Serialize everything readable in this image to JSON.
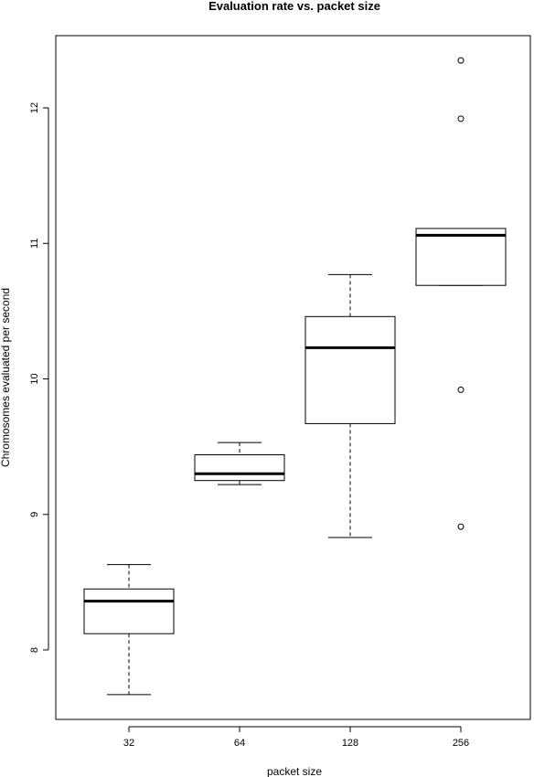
{
  "chart_data": {
    "type": "box",
    "title": "Evaluation rate vs. packet size",
    "xlabel": "packet size",
    "ylabel": "Chromosomes evaluated per second",
    "ylim": [
      7.5,
      12.5
    ],
    "yticks": [
      8,
      9,
      10,
      11,
      12
    ],
    "categories": [
      "32",
      "64",
      "128",
      "256"
    ],
    "boxes": [
      {
        "category": "32",
        "whisker_low": 7.67,
        "q1": 8.12,
        "median": 8.36,
        "q3": 8.45,
        "whisker_high": 8.63,
        "outliers": []
      },
      {
        "category": "64",
        "whisker_low": 9.22,
        "q1": 9.25,
        "median": 9.3,
        "q3": 9.44,
        "whisker_high": 9.53,
        "outliers": []
      },
      {
        "category": "128",
        "whisker_low": 8.83,
        "q1": 9.67,
        "median": 10.23,
        "q3": 10.46,
        "whisker_high": 10.77,
        "outliers": []
      },
      {
        "category": "256",
        "whisker_low": 10.69,
        "q1": 10.69,
        "median": 11.06,
        "q3": 11.11,
        "whisker_high": 11.11,
        "outliers": [
          12.35,
          11.92,
          9.92,
          8.91
        ]
      }
    ],
    "grid": false,
    "legend": "none"
  }
}
